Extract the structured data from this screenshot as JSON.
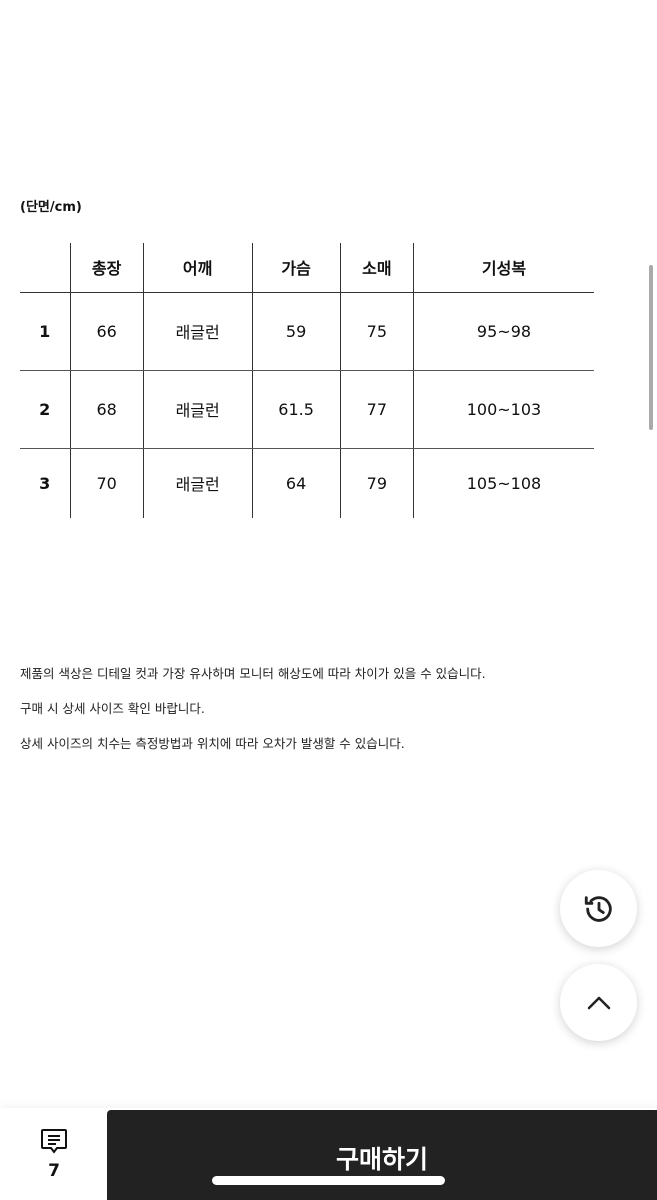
{
  "size_table": {
    "unit_label": "(단면/cm)",
    "headers": [
      "",
      "총장",
      "어깨",
      "가슴",
      "소매",
      "기성복"
    ],
    "rows": [
      [
        "1",
        "66",
        "래글런",
        "59",
        "75",
        "95~98"
      ],
      [
        "2",
        "68",
        "래글런",
        "61.5",
        "77",
        "100~103"
      ],
      [
        "3",
        "70",
        "래글런",
        "64",
        "79",
        "105~108"
      ]
    ]
  },
  "notes": [
    "제품의 색상은 디테일 컷과 가장 유사하며 모니터 해상도에 따라 차이가 있을 수 있습니다.",
    "구매 시 상세 사이즈 확인 바랍니다.",
    "상세 사이즈의 치수는 측정방법과 위치에 따라 오차가 발생할 수 있습니다."
  ],
  "floating": {
    "history_icon": "history-icon",
    "top_icon": "chevron-up-icon"
  },
  "bottom_bar": {
    "review_icon": "comment-icon",
    "review_count": "7",
    "buy_label": "구매하기"
  },
  "colors": {
    "buy_button": "#222222"
  }
}
